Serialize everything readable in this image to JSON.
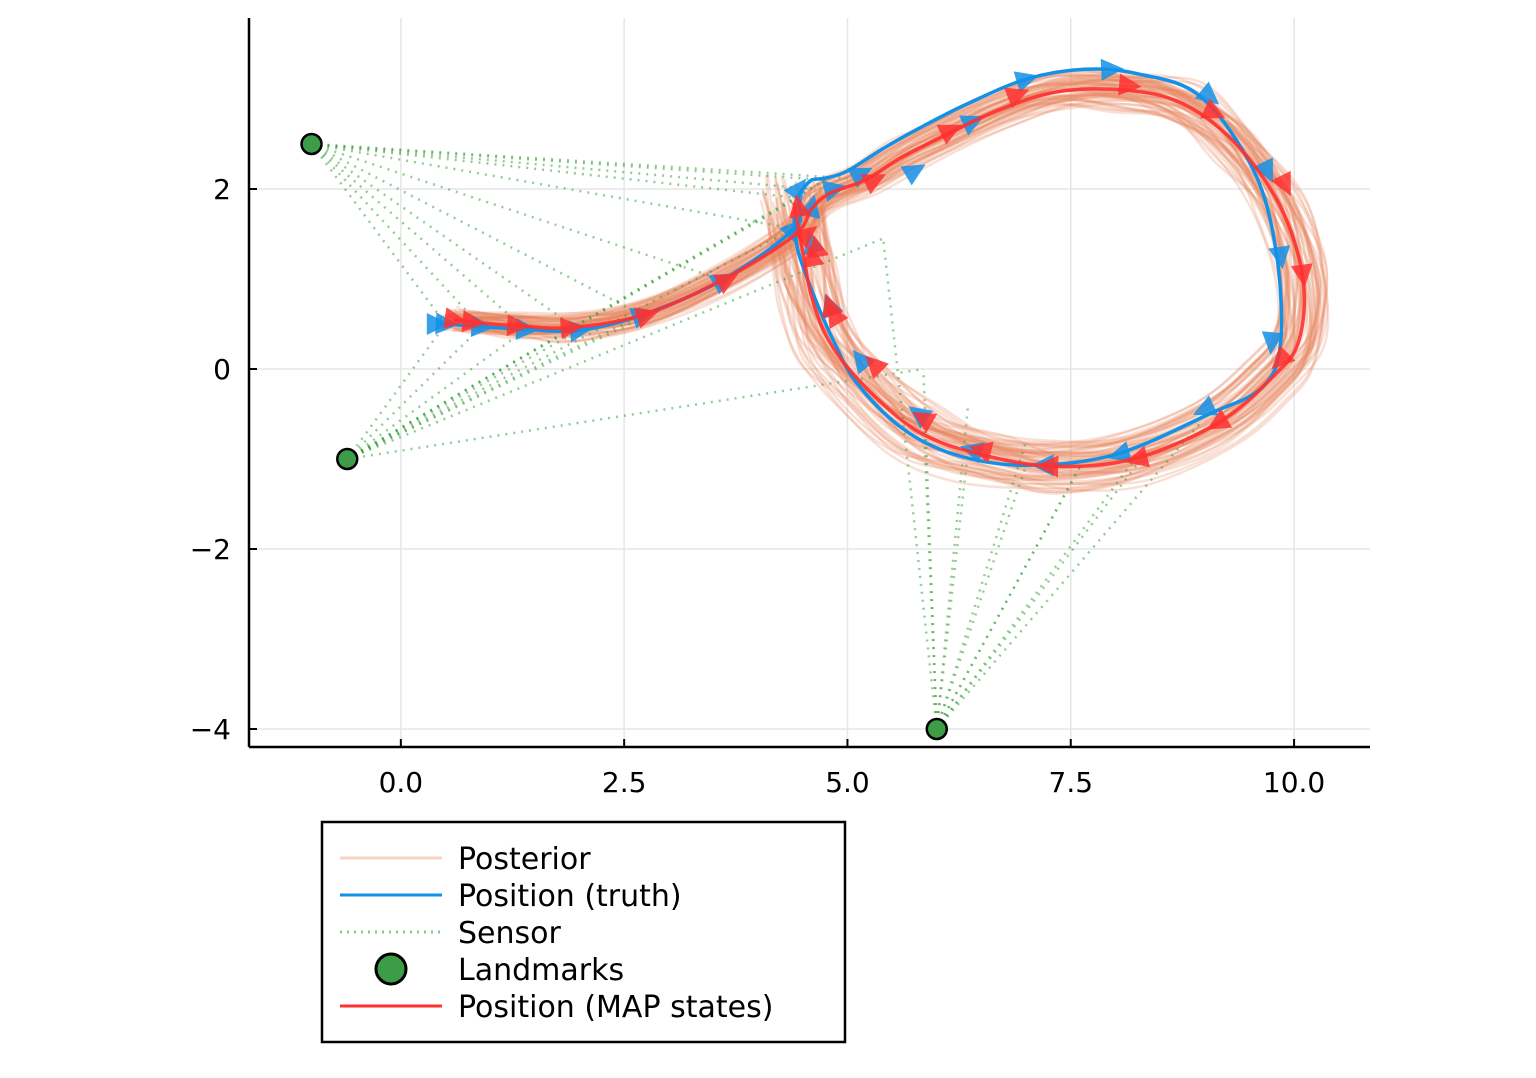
{
  "colors": {
    "posterior": "#e8845c",
    "truth": "#1391e8",
    "sensor": "#3aa33a",
    "landmark": "#3c9c48",
    "map": "#ff3030",
    "axis": "#000000",
    "grid": "#e6e6e6"
  },
  "chart_data": {
    "type": "line",
    "title": "",
    "xlabel": "",
    "ylabel": "",
    "xlim": [
      -1.7,
      10.85
    ],
    "ylim": [
      -4.2,
      3.9
    ],
    "xticks": [
      0.0,
      2.5,
      5.0,
      7.5,
      10.0
    ],
    "xtick_labels": [
      "0.0",
      "2.5",
      "5.0",
      "7.5",
      "10.0"
    ],
    "yticks": [
      -4,
      -2,
      0,
      2
    ],
    "ytick_labels": [
      "−4",
      "−2",
      "0",
      "2"
    ],
    "grid": true,
    "legend_position": "below-left",
    "legend": [
      {
        "key": "posterior",
        "label": "Posterior",
        "style": "line-faint"
      },
      {
        "key": "truth",
        "label": "Position (truth)",
        "style": "line"
      },
      {
        "key": "sensor",
        "label": "Sensor",
        "style": "dotted"
      },
      {
        "key": "landmark",
        "label": "Landmarks",
        "style": "marker"
      },
      {
        "key": "map",
        "label": "Position (MAP states)",
        "style": "line"
      }
    ],
    "landmarks": [
      {
        "x": -1.0,
        "y": 2.5
      },
      {
        "x": -0.6,
        "y": -1.0
      },
      {
        "x": 6.0,
        "y": -4.0
      }
    ],
    "truth": {
      "name": "Position (truth)",
      "x": [
        0.4,
        0.5,
        0.9,
        1.4,
        2.0,
        2.7,
        3.6,
        4.4,
        4.45,
        4.5,
        4.6,
        4.75,
        5.0,
        5.4,
        5.85,
        6.35,
        7.0,
        7.65,
        8.25,
        8.95,
        9.55,
        9.8,
        9.85,
        9.65,
        9.05,
        8.0,
        7.0,
        6.2,
        5.6,
        5.1,
        4.85,
        4.65,
        4.45,
        4.4
      ],
      "y": [
        0.5,
        0.5,
        0.47,
        0.44,
        0.43,
        0.6,
        0.99,
        1.56,
        1.9,
        2.0,
        2.1,
        2.12,
        2.2,
        2.45,
        2.7,
        2.95,
        3.22,
        3.33,
        3.28,
        3.03,
        2.2,
        1.3,
        0.3,
        -0.2,
        -0.5,
        -0.95,
        -1.07,
        -0.95,
        -0.65,
        -0.15,
        0.3,
        0.75,
        1.3,
        1.7
      ]
    },
    "truth_markers": {
      "x": [
        0.4,
        0.5,
        0.9,
        1.4,
        2.0,
        2.7,
        3.6,
        4.4,
        4.45,
        4.6,
        4.8,
        5.15,
        5.8,
        6.4,
        7.0,
        7.95,
        9.05,
        9.7,
        9.85,
        9.75,
        9.0,
        8.05,
        7.2,
        6.4,
        5.75,
        5.15,
        4.85,
        4.6
      ],
      "y": [
        0.5,
        0.5,
        0.47,
        0.44,
        0.43,
        0.6,
        0.99,
        1.56,
        2.0,
        1.4,
        0.7,
        0.1,
        -0.5,
        -0.9,
        3.22,
        3.33,
        3.03,
        2.2,
        1.25,
        0.3,
        -0.45,
        -0.95,
        -1.07,
        2.75,
        2.2,
        2.17,
        2.0,
        1.8
      ]
    },
    "map": {
      "name": "Position (MAP states)",
      "x": [
        0.6,
        0.8,
        1.3,
        1.9,
        2.7,
        3.6,
        4.4,
        4.6,
        4.8,
        5.2,
        5.6,
        6.1,
        6.7,
        7.35,
        8.1,
        8.75,
        9.35,
        9.85,
        10.1,
        10.05,
        9.75,
        9.15,
        8.2,
        7.3,
        6.5,
        5.8,
        5.2,
        4.8,
        4.6,
        4.5,
        4.4
      ],
      "y": [
        0.55,
        0.52,
        0.48,
        0.46,
        0.6,
        0.99,
        1.48,
        1.78,
        1.95,
        2.1,
        2.35,
        2.6,
        2.88,
        3.08,
        3.1,
        2.95,
        2.5,
        1.8,
        1.0,
        0.3,
        -0.1,
        -0.6,
        -1.0,
        -1.08,
        -0.95,
        -0.7,
        -0.2,
        0.3,
        0.8,
        1.3,
        1.85
      ]
    },
    "map_markers": {
      "x": [
        0.6,
        0.8,
        1.3,
        1.9,
        2.75,
        3.65,
        4.45,
        4.55,
        4.65,
        4.8,
        5.3,
        6.15,
        6.9,
        8.15,
        9.1,
        9.9,
        10.1,
        9.85,
        9.15,
        8.25,
        7.25,
        6.5,
        5.85,
        5.3,
        4.85,
        4.6
      ],
      "y": [
        0.55,
        0.52,
        0.48,
        0.46,
        0.6,
        0.99,
        1.8,
        1.5,
        1.35,
        0.7,
        2.1,
        2.65,
        3.05,
        3.15,
        2.85,
        2.05,
        1.05,
        0.1,
        -0.6,
        -1.0,
        -1.08,
        -0.9,
        -0.55,
        0.05,
        0.6,
        1.25
      ]
    },
    "sensor_targets": {
      "x": [
        0.5,
        0.9,
        1.4,
        2.0,
        2.7,
        3.6,
        4.4,
        4.45,
        4.6,
        4.75,
        5.0,
        5.4,
        5.85,
        6.35,
        7.0,
        7.65,
        8.25,
        8.95,
        5.85,
        6.35,
        7.0,
        7.65,
        8.25
      ],
      "y": [
        0.5,
        0.47,
        0.44,
        0.43,
        0.6,
        0.99,
        1.56,
        1.9,
        2.0,
        2.1,
        2.12,
        1.45,
        0.0,
        -0.4,
        -0.8,
        -1.0,
        -1.05,
        -0.6,
        -0.5,
        -0.9,
        -1.07,
        -1.0,
        -0.95
      ]
    },
    "sensor_links": [
      {
        "landmark": 0,
        "targets": [
          0,
          1,
          2,
          3,
          4,
          5,
          6,
          7,
          8,
          9,
          10
        ]
      },
      {
        "landmark": 1,
        "targets": [
          0,
          1,
          2,
          3,
          4,
          5,
          6,
          7,
          8,
          9,
          11,
          12
        ]
      },
      {
        "landmark": 2,
        "targets": [
          12,
          13,
          14,
          15,
          16,
          17,
          18,
          19,
          20,
          21,
          22,
          11
        ]
      }
    ]
  }
}
